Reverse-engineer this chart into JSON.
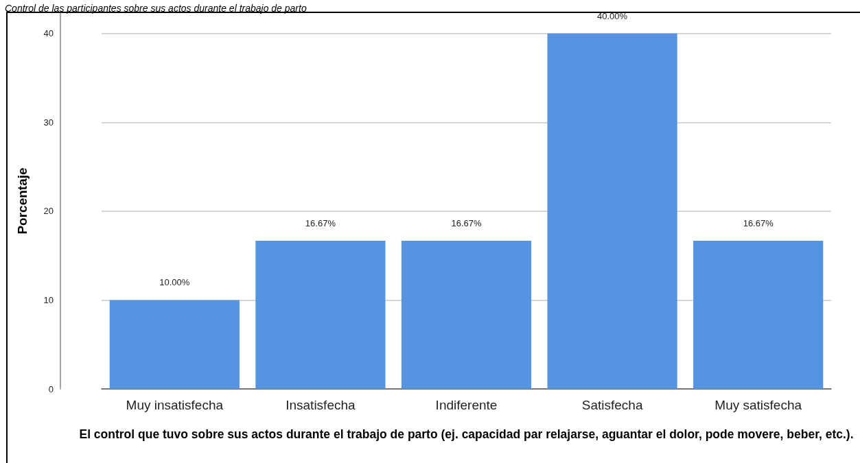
{
  "chart_data": {
    "type": "bar",
    "title": "Control de las participantes sobre sus actos durante el trabajo de parto",
    "xlabel": "El control que tuvo sobre sus actos durante el trabajo de parto (ej. capacidad par relajarse, aguantar el dolor, pode movere, beber, etc.).",
    "ylabel": "Porcentaje",
    "categories": [
      "Muy insatisfecha",
      "Insatisfecha",
      "Indiferente",
      "Satisfecha",
      "Muy satisfecha"
    ],
    "values": [
      10,
      16.67,
      16.67,
      40,
      16.67
    ],
    "value_labels": [
      "10.00%",
      "16.67%",
      "16.67%",
      "40.00%",
      "16.67%"
    ],
    "color": "#5694e2",
    "ylim": [
      0,
      42.3
    ],
    "yticks": [
      0,
      10,
      20,
      30,
      40
    ],
    "grid": "y"
  }
}
